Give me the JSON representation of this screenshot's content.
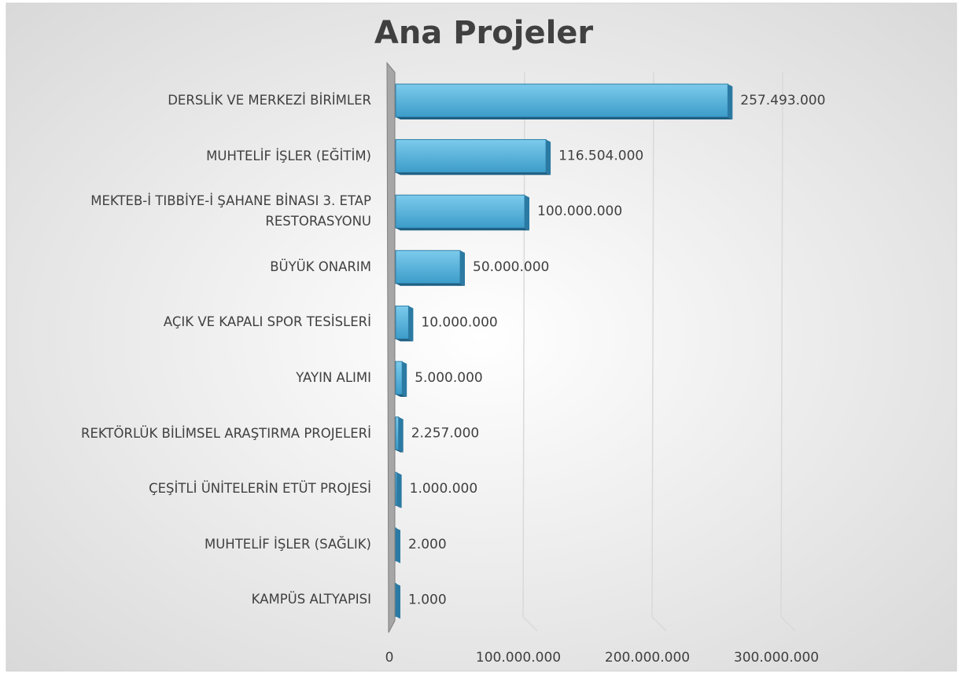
{
  "chart_data": {
    "type": "bar",
    "orientation": "horizontal",
    "title": "Ana Projeler",
    "categories": [
      "DERSLİK VE MERKEZİ BİRİMLER",
      "MUHTELİF İŞLER (EĞİTİM)",
      "MEKTEB-İ TIBBİYE-İ ŞAHANE BİNASI 3. ETAP RESTORASYONU",
      "BÜYÜK ONARIM",
      "AÇIK VE KAPALI SPOR TESİSLERİ",
      "YAYIN ALIMI",
      "REKTÖRLÜK BİLİMSEL ARAŞTIRMA PROJELERİ",
      "ÇEŞİTLİ ÜNİTELERİN ETÜT PROJESİ",
      "MUHTELİF İŞLER (SAĞLIK)",
      "KAMPÜS ALTYAPISI"
    ],
    "values": [
      257493000,
      116504000,
      100000000,
      50000000,
      10000000,
      5000000,
      2257000,
      1000000,
      2000,
      1000
    ],
    "value_labels": [
      "257.493.000",
      "116.504.000",
      "100.000.000",
      "50.000.000",
      "10.000.000",
      "5.000.000",
      "2.257.000",
      "1.000.000",
      "2.000",
      "1.000"
    ],
    "color": "#4aa8d8",
    "xlim": [
      0,
      300000000
    ],
    "xticks": [
      0,
      {
        "value": 100000000,
        "label": "100.000.000"
      },
      {
        "value": 200000000,
        "label": "200.000.000"
      },
      {
        "value": 300000000,
        "label": "300.000.000"
      }
    ],
    "grid": true
  }
}
